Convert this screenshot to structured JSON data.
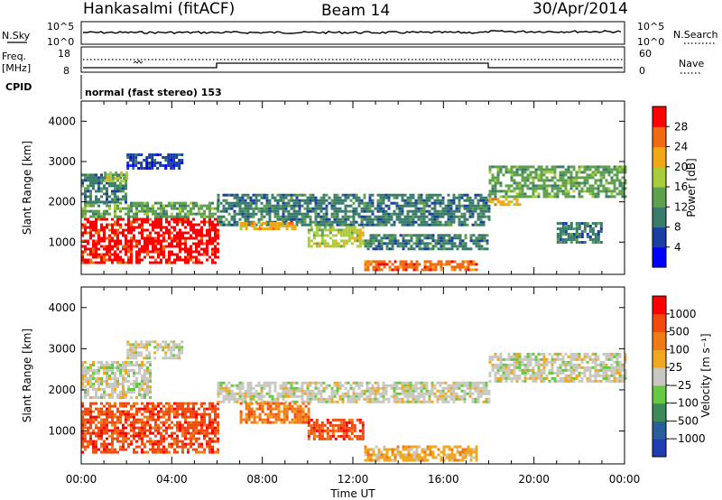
{
  "header": {
    "station": "Hankasalmi (fitACF)",
    "beam": "Beam 14",
    "date": "30/Apr/2014"
  },
  "strips": {
    "nsky_label": "N.Sky",
    "nsky_ticks": [
      "10^5",
      "10^0"
    ],
    "nsearch_label": "N.Search",
    "nsearch_ticks": [
      "10^5",
      "10^0"
    ],
    "freq_label_1": "Freq.",
    "freq_label_2": "[MHz]",
    "freq_ticks": [
      "18",
      "8"
    ],
    "nave_label": "Nave",
    "nave_ticks": [
      "60",
      "0"
    ],
    "cpid_label": "CPID",
    "cpid_text": "normal (fast stereo) 153"
  },
  "chart_data": [
    {
      "type": "heatmap",
      "panel": "power",
      "ylabel": "Slant Range [km]",
      "yticks": [
        "1000",
        "2000",
        "3000",
        "4000"
      ],
      "ylim": [
        200,
        4500
      ],
      "xlim_hours": [
        0,
        24
      ],
      "colorbar": {
        "label": "Power [dB]",
        "ticks": [
          "4",
          "8",
          "12",
          "16",
          "20",
          "24",
          "28"
        ],
        "colors": [
          "#0000ff",
          "#1a3fa0",
          "#3a7c6c",
          "#5fa04f",
          "#a8cc3a",
          "#f0a814",
          "#f06a12",
          "#ff0000"
        ],
        "range": [
          0,
          32
        ]
      },
      "echo_regions": [
        {
          "t0": 0.0,
          "t1": 6.0,
          "r0": 500,
          "r1": 1600,
          "level": 30
        },
        {
          "t0": 0.0,
          "t1": 6.0,
          "r0": 1600,
          "r1": 2000,
          "level": 14
        },
        {
          "t0": 0.0,
          "t1": 2.0,
          "r0": 2000,
          "r1": 2700,
          "level": 10
        },
        {
          "t0": 1.0,
          "t1": 2.0,
          "r0": 2500,
          "r1": 2750,
          "level": 18
        },
        {
          "t0": 2.0,
          "t1": 4.5,
          "r0": 2800,
          "r1": 3200,
          "level": 6
        },
        {
          "t0": 6.0,
          "t1": 18.0,
          "r0": 1400,
          "r1": 2200,
          "level": 8
        },
        {
          "t0": 7.0,
          "t1": 9.5,
          "r0": 1300,
          "r1": 1500,
          "level": 22
        },
        {
          "t0": 10.0,
          "t1": 12.5,
          "r0": 900,
          "r1": 1400,
          "level": 16
        },
        {
          "t0": 12.5,
          "t1": 17.5,
          "r0": 300,
          "r1": 550,
          "level": 28
        },
        {
          "t0": 12.5,
          "t1": 18.0,
          "r0": 800,
          "r1": 1200,
          "level": 10
        },
        {
          "t0": 18.0,
          "t1": 24.0,
          "r0": 2100,
          "r1": 2900,
          "level": 12
        },
        {
          "t0": 18.0,
          "t1": 19.5,
          "r0": 1900,
          "r1": 2100,
          "level": 24
        },
        {
          "t0": 21.0,
          "t1": 23.0,
          "r0": 1000,
          "r1": 1500,
          "level": 8
        }
      ]
    },
    {
      "type": "heatmap",
      "panel": "velocity",
      "ylabel": "Slant Range [km]",
      "yticks": [
        "1000",
        "2000",
        "3000",
        "4000"
      ],
      "ylim": [
        200,
        4500
      ],
      "xlim_hours": [
        0,
        24
      ],
      "colorbar": {
        "label": "Velocity [m s⁻¹]",
        "ticks": [
          "1000",
          "500",
          "100",
          "25",
          "−25",
          "−100",
          "−500",
          "−1000"
        ],
        "colors": [
          "#1f3fb0",
          "#2a5e9a",
          "#3c8a58",
          "#66c844",
          "#c8c8c0",
          "#f0a820",
          "#f07a18",
          "#f04a10",
          "#ff0000"
        ]
      },
      "echo_regions": [
        {
          "t0": 0.0,
          "t1": 6.0,
          "r0": 500,
          "r1": 1700,
          "level": 7
        },
        {
          "t0": 0.0,
          "t1": 3.0,
          "r0": 1800,
          "r1": 2700,
          "level": 4
        },
        {
          "t0": 2.0,
          "t1": 4.5,
          "r0": 2800,
          "r1": 3200,
          "level": 4
        },
        {
          "t0": 6.0,
          "t1": 18.0,
          "r0": 1700,
          "r1": 2200,
          "level": 4
        },
        {
          "t0": 7.0,
          "t1": 10.0,
          "r0": 1200,
          "r1": 1700,
          "level": 6
        },
        {
          "t0": 10.0,
          "t1": 12.5,
          "r0": 800,
          "r1": 1300,
          "level": 7
        },
        {
          "t0": 12.5,
          "t1": 17.5,
          "r0": 300,
          "r1": 650,
          "level": 5
        },
        {
          "t0": 18.0,
          "t1": 24.0,
          "r0": 2200,
          "r1": 2900,
          "level": 4
        }
      ]
    }
  ],
  "xaxis": {
    "ticks": [
      "00:00",
      "04:00",
      "08:00",
      "12:00",
      "16:00",
      "20:00",
      "00:00"
    ],
    "label": "Time UT"
  }
}
